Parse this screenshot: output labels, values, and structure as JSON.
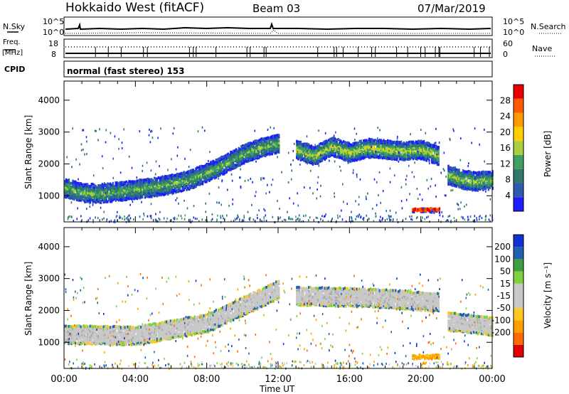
{
  "header": {
    "station": "Hokkaido West (fitACF)",
    "beam": "Beam 03",
    "date": "07/Mar/2019"
  },
  "strips": {
    "nsky": {
      "label": "N.Sky",
      "ticks": [
        "10^5",
        "10^0"
      ],
      "right_ticks": [
        "10^5",
        "10^0"
      ],
      "right_label": "N.Search"
    },
    "freq": {
      "label_line1": "Freq.",
      "label_line2": "[MHz]",
      "ticks": [
        "18",
        "8"
      ],
      "right_ticks": [
        "60",
        "0"
      ],
      "right_label": "Nave"
    },
    "cpid": {
      "label": "CPID",
      "text": "normal (fast stereo) 153"
    }
  },
  "panels": {
    "power": {
      "ylabel": "Slant Range [km]",
      "cbar_label": "Power [dB]"
    },
    "velocity": {
      "ylabel": "Slant Range [km]",
      "cbar_label": "Velocity [m s⁻¹]"
    }
  },
  "xaxis": {
    "label": "Time UT"
  },
  "colors": {
    "power_scale": [
      "#1c1cff",
      "#2c5bb0",
      "#2f7a6a",
      "#3fa060",
      "#a8d040",
      "#ffd000",
      "#ff9a00",
      "#ff5a00",
      "#e80000"
    ],
    "velocity_scale": [
      "#e00000",
      "#ff6a00",
      "#ffa000",
      "#ffc820",
      "#c8c8c8",
      "#c8c8c8",
      "#80d040",
      "#40a040",
      "#2060b0",
      "#1030d0"
    ]
  },
  "chart_data": [
    {
      "type": "heatmap",
      "title": "Power",
      "xlabel": "Time UT",
      "ylabel": "Slant Range [km]",
      "x_ticks": [
        "00:00",
        "04:00",
        "08:00",
        "12:00",
        "16:00",
        "20:00",
        "00:00"
      ],
      "xlim": [
        0,
        24
      ],
      "y_ticks": [
        1000,
        2000,
        3000,
        4000
      ],
      "ylim": [
        180,
        4600
      ],
      "colorbar": {
        "label": "Power [dB]",
        "ticks": [
          4,
          8,
          12,
          16,
          20,
          24,
          28
        ],
        "range": [
          0,
          32
        ]
      },
      "echo_bands": [
        {
          "t": [
            0,
            1,
            2,
            3,
            4,
            5,
            6,
            7,
            8,
            9,
            10,
            11,
            12
          ],
          "center_km": [
            1300,
            1150,
            1120,
            1180,
            1250,
            1320,
            1420,
            1550,
            1780,
            2050,
            2350,
            2550,
            2700
          ],
          "power_db": 14
        },
        {
          "t": [
            13,
            14,
            15,
            16,
            17,
            18,
            19,
            20,
            21
          ],
          "center_km": [
            2500,
            2300,
            2600,
            2400,
            2550,
            2500,
            2450,
            2500,
            2300
          ],
          "power_db": 18
        },
        {
          "t": [
            21.5,
            22,
            23,
            24
          ],
          "center_km": [
            1700,
            1600,
            1500,
            1550
          ],
          "power_db": 16
        },
        {
          "t": [
            19.5,
            20,
            20.5,
            21
          ],
          "center_km": [
            600,
            600,
            600,
            600
          ],
          "power_db": 24
        }
      ]
    },
    {
      "type": "heatmap",
      "title": "Velocity",
      "xlabel": "Time UT",
      "ylabel": "Slant Range [km]",
      "x_ticks": [
        "00:00",
        "04:00",
        "08:00",
        "12:00",
        "16:00",
        "20:00",
        "00:00"
      ],
      "xlim": [
        0,
        24
      ],
      "y_ticks": [
        1000,
        2000,
        3000,
        4000
      ],
      "ylim": [
        180,
        4600
      ],
      "colorbar": {
        "label": "Velocity [m s⁻¹]",
        "ticks": [
          200,
          100,
          50,
          15,
          -15,
          -50,
          -100,
          -200
        ],
        "range": [
          -250,
          250
        ]
      },
      "echo_bands": [
        {
          "t": [
            0,
            4,
            8,
            12
          ],
          "center_km": [
            1300,
            1250,
            1650,
            2700
          ],
          "velocity": 0
        },
        {
          "t": [
            13,
            17,
            21
          ],
          "center_km": [
            2500,
            2450,
            2300
          ],
          "velocity": 0
        },
        {
          "t": [
            21.5,
            24
          ],
          "center_km": [
            1700,
            1550
          ],
          "velocity": 0
        },
        {
          "t": [
            19.5,
            21
          ],
          "center_km": [
            600,
            600
          ],
          "velocity": -40
        }
      ]
    }
  ]
}
